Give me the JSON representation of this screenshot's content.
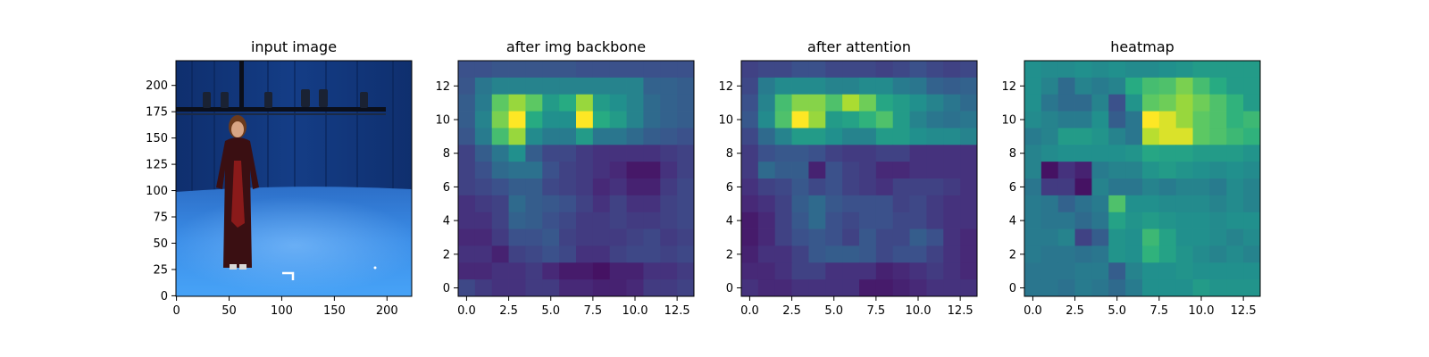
{
  "chart_data": [
    {
      "type": "image",
      "title": "input image",
      "xticks": [
        0,
        50,
        100,
        150,
        200
      ],
      "yticks": [
        0,
        25,
        50,
        75,
        100,
        125,
        150,
        175,
        200
      ],
      "xlim": [
        -0.5,
        223.5
      ],
      "ylim": [
        223.5,
        -0.5
      ]
    },
    {
      "type": "heatmap",
      "title": "after img backbone",
      "colormap": "viridis",
      "xticks": [
        0.0,
        2.5,
        5.0,
        7.5,
        10.0,
        12.5
      ],
      "xtick_labels": [
        "0.0",
        "2.5",
        "5.0",
        "7.5",
        "10.0",
        "12.5"
      ],
      "yticks": [
        0,
        2,
        4,
        6,
        8,
        10,
        12
      ],
      "xlim": [
        -0.5,
        13.5
      ],
      "ylim": [
        13.5,
        -0.5
      ],
      "z": [
        [
          0.25,
          0.25,
          0.27,
          0.27,
          0.27,
          0.27,
          0.27,
          0.25,
          0.25,
          0.25,
          0.25,
          0.25,
          0.25,
          0.25
        ],
        [
          0.27,
          0.4,
          0.45,
          0.45,
          0.45,
          0.45,
          0.45,
          0.45,
          0.45,
          0.45,
          0.45,
          0.32,
          0.32,
          0.3
        ],
        [
          0.3,
          0.42,
          0.75,
          0.85,
          0.75,
          0.55,
          0.62,
          0.85,
          0.55,
          0.5,
          0.45,
          0.35,
          0.32,
          0.3
        ],
        [
          0.3,
          0.45,
          0.8,
          1.0,
          0.62,
          0.5,
          0.5,
          1.0,
          0.62,
          0.55,
          0.45,
          0.35,
          0.32,
          0.3
        ],
        [
          0.27,
          0.42,
          0.7,
          0.85,
          0.48,
          0.42,
          0.42,
          0.55,
          0.4,
          0.4,
          0.35,
          0.3,
          0.28,
          0.25
        ],
        [
          0.2,
          0.3,
          0.4,
          0.5,
          0.3,
          0.22,
          0.22,
          0.18,
          0.15,
          0.15,
          0.15,
          0.15,
          0.18,
          0.2
        ],
        [
          0.2,
          0.25,
          0.35,
          0.38,
          0.38,
          0.25,
          0.2,
          0.18,
          0.15,
          0.12,
          0.07,
          0.07,
          0.15,
          0.2
        ],
        [
          0.2,
          0.22,
          0.25,
          0.3,
          0.3,
          0.22,
          0.2,
          0.18,
          0.12,
          0.15,
          0.1,
          0.1,
          0.18,
          0.22
        ],
        [
          0.15,
          0.18,
          0.2,
          0.35,
          0.3,
          0.28,
          0.25,
          0.2,
          0.15,
          0.2,
          0.15,
          0.15,
          0.2,
          0.22
        ],
        [
          0.15,
          0.15,
          0.2,
          0.32,
          0.3,
          0.25,
          0.22,
          0.18,
          0.18,
          0.2,
          0.18,
          0.18,
          0.2,
          0.22
        ],
        [
          0.12,
          0.12,
          0.18,
          0.25,
          0.25,
          0.28,
          0.2,
          0.18,
          0.18,
          0.18,
          0.2,
          0.22,
          0.18,
          0.2
        ],
        [
          0.15,
          0.15,
          0.1,
          0.2,
          0.22,
          0.25,
          0.22,
          0.15,
          0.15,
          0.2,
          0.22,
          0.22,
          0.2,
          0.22
        ],
        [
          0.12,
          0.12,
          0.15,
          0.15,
          0.18,
          0.12,
          0.08,
          0.08,
          0.05,
          0.1,
          0.1,
          0.15,
          0.15,
          0.18
        ],
        [
          0.22,
          0.18,
          0.15,
          0.15,
          0.18,
          0.18,
          0.12,
          0.12,
          0.1,
          0.1,
          0.12,
          0.18,
          0.18,
          0.2
        ]
      ]
    },
    {
      "type": "heatmap",
      "title": "after attention",
      "colormap": "viridis",
      "xticks": [
        0.0,
        2.5,
        5.0,
        7.5,
        10.0,
        12.5
      ],
      "xtick_labels": [
        "0.0",
        "2.5",
        "5.0",
        "7.5",
        "10.0",
        "12.5"
      ],
      "yticks": [
        0,
        2,
        4,
        6,
        8,
        10,
        12
      ],
      "xlim": [
        -0.5,
        13.5
      ],
      "ylim": [
        13.5,
        -0.5
      ],
      "z": [
        [
          0.2,
          0.22,
          0.22,
          0.25,
          0.25,
          0.22,
          0.22,
          0.22,
          0.2,
          0.22,
          0.25,
          0.22,
          0.2,
          0.22
        ],
        [
          0.22,
          0.42,
          0.48,
          0.48,
          0.48,
          0.45,
          0.45,
          0.48,
          0.48,
          0.42,
          0.4,
          0.32,
          0.3,
          0.32
        ],
        [
          0.25,
          0.45,
          0.7,
          0.82,
          0.82,
          0.72,
          0.88,
          0.78,
          0.6,
          0.55,
          0.5,
          0.45,
          0.4,
          0.35
        ],
        [
          0.28,
          0.48,
          0.72,
          1.0,
          0.85,
          0.55,
          0.58,
          0.65,
          0.72,
          0.55,
          0.45,
          0.4,
          0.38,
          0.4
        ],
        [
          0.22,
          0.35,
          0.45,
          0.55,
          0.55,
          0.5,
          0.45,
          0.45,
          0.55,
          0.55,
          0.5,
          0.48,
          0.48,
          0.45
        ],
        [
          0.18,
          0.25,
          0.28,
          0.28,
          0.25,
          0.2,
          0.18,
          0.18,
          0.2,
          0.2,
          0.15,
          0.15,
          0.15,
          0.15
        ],
        [
          0.18,
          0.35,
          0.3,
          0.3,
          0.1,
          0.25,
          0.2,
          0.18,
          0.12,
          0.12,
          0.15,
          0.15,
          0.15,
          0.15
        ],
        [
          0.15,
          0.2,
          0.22,
          0.28,
          0.22,
          0.25,
          0.2,
          0.18,
          0.15,
          0.2,
          0.2,
          0.2,
          0.18,
          0.15
        ],
        [
          0.12,
          0.15,
          0.2,
          0.3,
          0.35,
          0.28,
          0.25,
          0.25,
          0.25,
          0.2,
          0.22,
          0.18,
          0.15,
          0.15
        ],
        [
          0.08,
          0.12,
          0.2,
          0.28,
          0.35,
          0.25,
          0.22,
          0.25,
          0.25,
          0.22,
          0.22,
          0.18,
          0.15,
          0.15
        ],
        [
          0.08,
          0.12,
          0.2,
          0.25,
          0.28,
          0.25,
          0.2,
          0.28,
          0.22,
          0.22,
          0.3,
          0.25,
          0.15,
          0.12
        ],
        [
          0.1,
          0.15,
          0.15,
          0.2,
          0.28,
          0.3,
          0.3,
          0.28,
          0.22,
          0.25,
          0.25,
          0.2,
          0.15,
          0.12
        ],
        [
          0.12,
          0.12,
          0.15,
          0.2,
          0.2,
          0.15,
          0.15,
          0.15,
          0.1,
          0.12,
          0.15,
          0.18,
          0.15,
          0.12
        ],
        [
          0.15,
          0.12,
          0.12,
          0.15,
          0.15,
          0.15,
          0.15,
          0.08,
          0.08,
          0.1,
          0.12,
          0.15,
          0.15,
          0.15
        ]
      ]
    },
    {
      "type": "heatmap",
      "title": "heatmap",
      "colormap": "viridis",
      "xticks": [
        0.0,
        2.5,
        5.0,
        7.5,
        10.0,
        12.5
      ],
      "xtick_labels": [
        "0.0",
        "2.5",
        "5.0",
        "7.5",
        "10.0",
        "12.5"
      ],
      "yticks": [
        0,
        2,
        4,
        6,
        8,
        10,
        12
      ],
      "xlim": [
        -0.5,
        13.5
      ],
      "ylim": [
        13.5,
        -0.5
      ],
      "z": [
        [
          0.5,
          0.48,
          0.48,
          0.5,
          0.48,
          0.5,
          0.48,
          0.48,
          0.5,
          0.52,
          0.55,
          0.55,
          0.55,
          0.55
        ],
        [
          0.5,
          0.45,
          0.35,
          0.45,
          0.42,
          0.45,
          0.62,
          0.7,
          0.72,
          0.8,
          0.7,
          0.62,
          0.55,
          0.55
        ],
        [
          0.5,
          0.4,
          0.35,
          0.35,
          0.45,
          0.25,
          0.52,
          0.75,
          0.78,
          0.85,
          0.78,
          0.72,
          0.65,
          0.55
        ],
        [
          0.48,
          0.45,
          0.42,
          0.42,
          0.5,
          0.3,
          0.4,
          1.0,
          0.95,
          0.85,
          0.75,
          0.72,
          0.65,
          0.68
        ],
        [
          0.42,
          0.45,
          0.55,
          0.55,
          0.52,
          0.45,
          0.4,
          0.9,
          0.95,
          0.95,
          0.75,
          0.72,
          0.68,
          0.65
        ],
        [
          0.45,
          0.48,
          0.5,
          0.5,
          0.5,
          0.5,
          0.52,
          0.6,
          0.58,
          0.58,
          0.55,
          0.55,
          0.55,
          0.52
        ],
        [
          0.45,
          0.05,
          0.15,
          0.1,
          0.42,
          0.45,
          0.45,
          0.52,
          0.55,
          0.52,
          0.5,
          0.48,
          0.5,
          0.48
        ],
        [
          0.4,
          0.18,
          0.18,
          0.05,
          0.45,
          0.4,
          0.4,
          0.45,
          0.42,
          0.45,
          0.45,
          0.42,
          0.48,
          0.45
        ],
        [
          0.42,
          0.4,
          0.32,
          0.38,
          0.42,
          0.72,
          0.5,
          0.5,
          0.48,
          0.48,
          0.48,
          0.45,
          0.48,
          0.45
        ],
        [
          0.42,
          0.4,
          0.4,
          0.35,
          0.4,
          0.58,
          0.52,
          0.55,
          0.52,
          0.5,
          0.5,
          0.48,
          0.5,
          0.5
        ],
        [
          0.42,
          0.42,
          0.45,
          0.2,
          0.3,
          0.52,
          0.5,
          0.68,
          0.58,
          0.5,
          0.5,
          0.48,
          0.45,
          0.48
        ],
        [
          0.42,
          0.4,
          0.4,
          0.38,
          0.4,
          0.52,
          0.5,
          0.65,
          0.58,
          0.52,
          0.48,
          0.45,
          0.48,
          0.45
        ],
        [
          0.4,
          0.4,
          0.4,
          0.42,
          0.42,
          0.3,
          0.45,
          0.5,
          0.5,
          0.52,
          0.5,
          0.5,
          0.5,
          0.5
        ],
        [
          0.4,
          0.4,
          0.38,
          0.42,
          0.4,
          0.35,
          0.42,
          0.5,
          0.5,
          0.5,
          0.55,
          0.52,
          0.52,
          0.52
        ]
      ]
    }
  ]
}
